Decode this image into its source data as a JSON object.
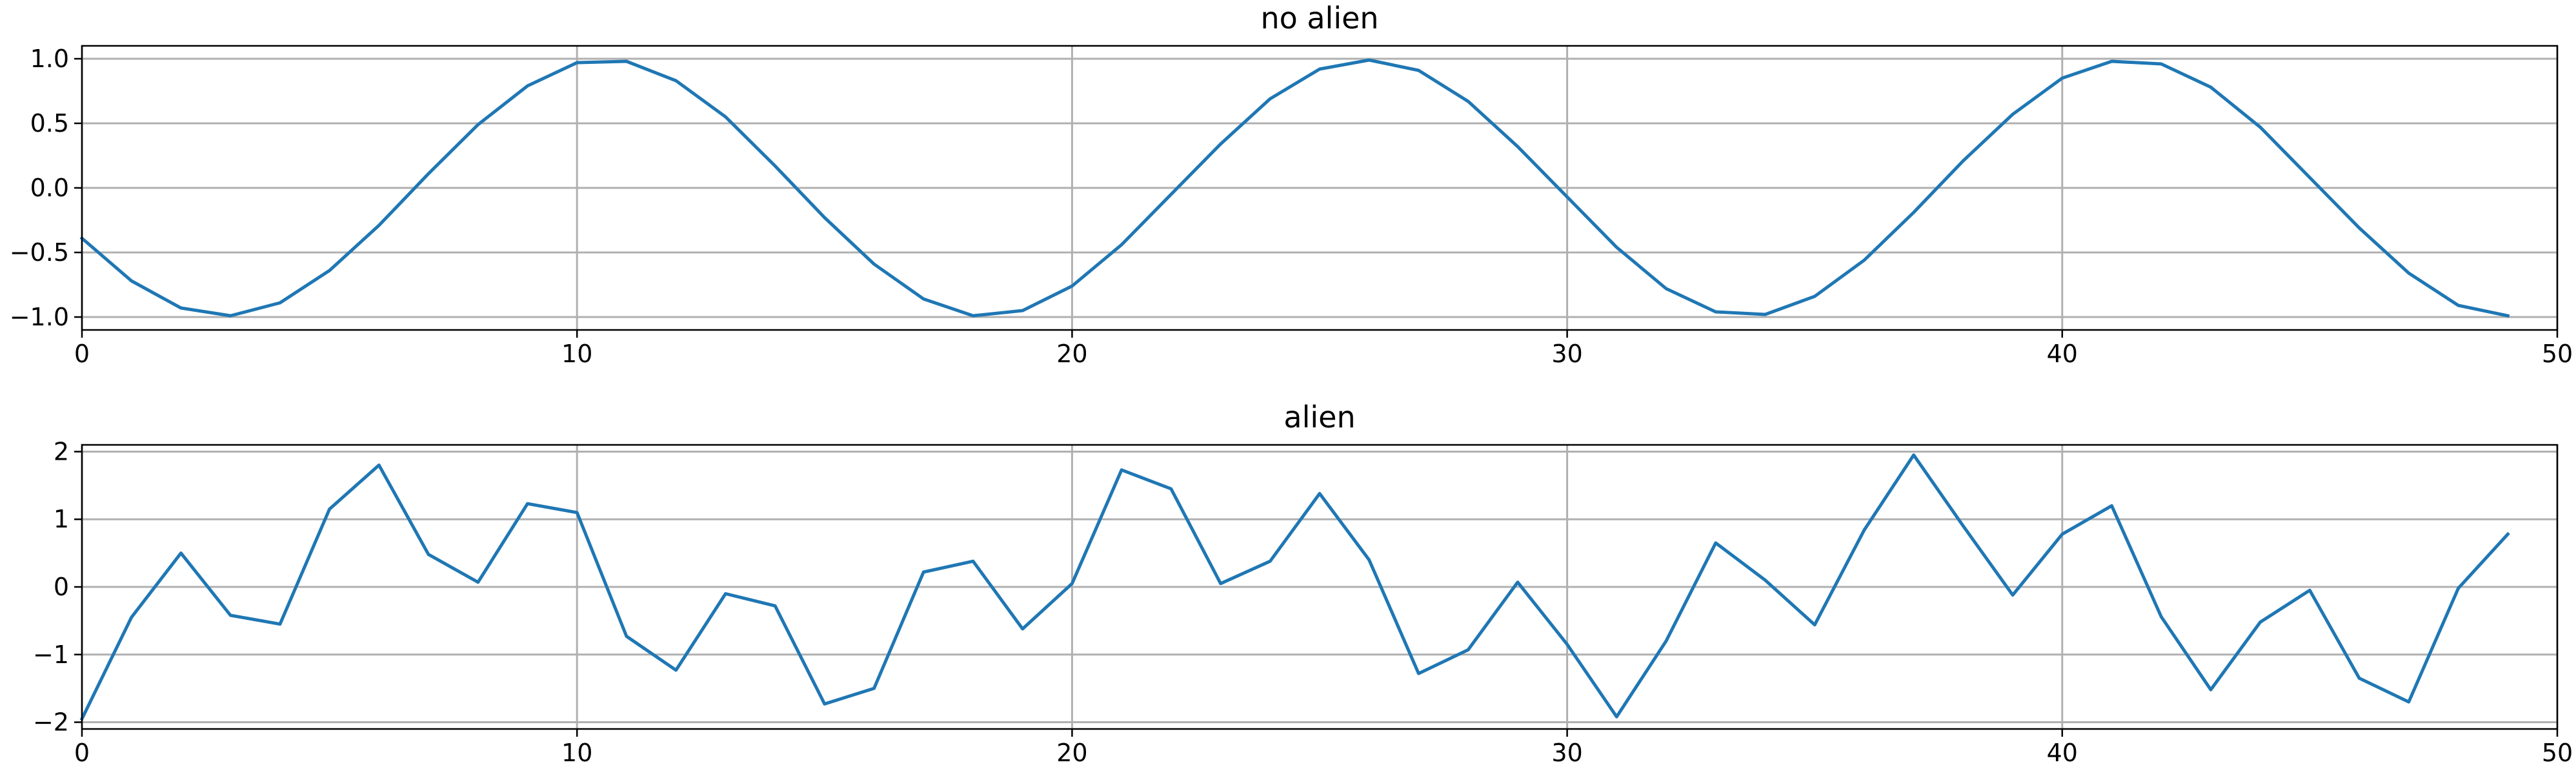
{
  "figure": {
    "background": "#ffffff"
  },
  "chart_data": [
    {
      "type": "line",
      "title": "no alien",
      "xlabel": "",
      "ylabel": "",
      "xlim": [
        0,
        50
      ],
      "ylim": [
        -1.1,
        1.1
      ],
      "grid": true,
      "xticks": [
        0,
        10,
        20,
        30,
        40,
        50
      ],
      "yticks": [
        -1.0,
        -0.5,
        0.0,
        0.5,
        1.0
      ],
      "xtick_labels": [
        "0",
        "10",
        "20",
        "30",
        "40",
        "50"
      ],
      "ytick_labels": [
        "−1.0",
        "−0.5",
        "0.0",
        "0.5",
        "1.0"
      ],
      "series": [
        {
          "color": "#1f77b4",
          "x": [
            0,
            1,
            2,
            3,
            4,
            5,
            6,
            7,
            8,
            9,
            10,
            11,
            12,
            13,
            14,
            15,
            16,
            17,
            18,
            19,
            20,
            21,
            22,
            23,
            24,
            25,
            26,
            27,
            28,
            29,
            30,
            31,
            32,
            33,
            34,
            35,
            36,
            37,
            38,
            39,
            40,
            41,
            42,
            43,
            44,
            45,
            46,
            47,
            48,
            49
          ],
          "values": [
            -0.39,
            -0.72,
            -0.93,
            -0.99,
            -0.89,
            -0.64,
            -0.29,
            0.11,
            0.49,
            0.79,
            0.97,
            0.98,
            0.83,
            0.55,
            0.17,
            -0.23,
            -0.59,
            -0.86,
            -0.99,
            -0.95,
            -0.76,
            -0.44,
            -0.05,
            0.34,
            0.69,
            0.92,
            0.99,
            0.91,
            0.67,
            0.32,
            -0.07,
            -0.46,
            -0.78,
            -0.96,
            -0.98,
            -0.84,
            -0.56,
            -0.19,
            0.21,
            0.57,
            0.85,
            0.98,
            0.96,
            0.78,
            0.47,
            0.08,
            -0.31,
            -0.66,
            -0.91,
            -0.99
          ]
        }
      ]
    },
    {
      "type": "line",
      "title": "alien",
      "xlabel": "",
      "ylabel": "",
      "xlim": [
        0,
        50
      ],
      "ylim": [
        -2.1,
        2.1
      ],
      "grid": true,
      "xticks": [
        0,
        10,
        20,
        30,
        40,
        50
      ],
      "yticks": [
        -2,
        -1,
        0,
        1,
        2
      ],
      "xtick_labels": [
        "0",
        "10",
        "20",
        "30",
        "40",
        "50"
      ],
      "ytick_labels": [
        "−2",
        "−1",
        "0",
        "1",
        "2"
      ],
      "series": [
        {
          "color": "#1f77b4",
          "x": [
            0,
            1,
            2,
            3,
            4,
            5,
            6,
            7,
            8,
            9,
            10,
            11,
            12,
            13,
            14,
            15,
            16,
            17,
            18,
            19,
            20,
            21,
            22,
            23,
            24,
            25,
            26,
            27,
            28,
            29,
            30,
            31,
            32,
            33,
            34,
            35,
            36,
            37,
            38,
            39,
            40,
            41,
            42,
            43,
            44,
            45,
            46,
            47,
            48,
            49
          ],
          "values": [
            -1.95,
            -0.45,
            0.5,
            -0.42,
            -0.55,
            1.15,
            1.8,
            0.48,
            0.07,
            1.23,
            1.1,
            -0.73,
            -1.23,
            -0.1,
            -0.28,
            -1.73,
            -1.5,
            0.22,
            0.38,
            -0.62,
            0.05,
            1.73,
            1.45,
            0.05,
            0.38,
            1.38,
            0.4,
            -1.28,
            -0.93,
            0.07,
            -0.85,
            -1.92,
            -0.8,
            0.65,
            0.1,
            -0.56,
            0.84,
            1.95,
            0.9,
            -0.12,
            0.78,
            1.2,
            -0.44,
            -1.52,
            -0.52,
            -0.05,
            -1.35,
            -1.7,
            -0.02,
            0.78
          ]
        }
      ]
    }
  ]
}
